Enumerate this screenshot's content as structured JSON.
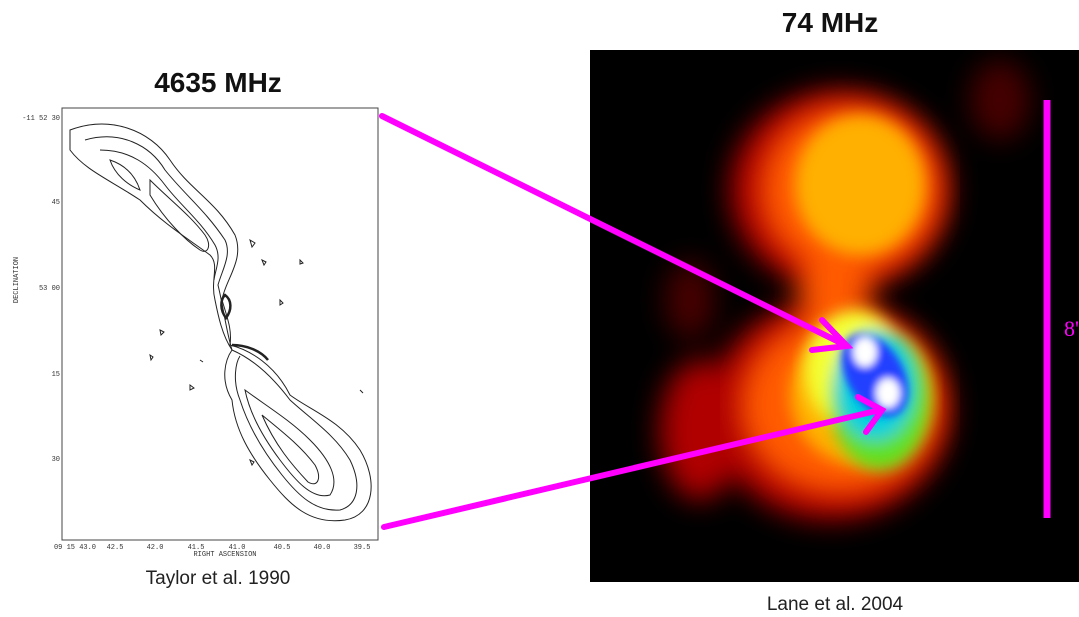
{
  "left_panel": {
    "title": "4635 MHz",
    "caption": "Taylor et al. 1990",
    "y_axis_label": "DECLINATION",
    "x_axis_label": "RIGHT ASCENSION",
    "y_tick_labels": [
      "-11 52 30",
      "45",
      "53 00",
      "15",
      "30"
    ],
    "x_tick_labels": [
      "09 15 43.0",
      "42.5",
      "42.0",
      "41.5",
      "41.0",
      "40.5",
      "40.0",
      "39.5"
    ]
  },
  "right_panel": {
    "title": "74 MHz",
    "caption": "Lane et al. 2004",
    "scale_label": "8'"
  }
}
